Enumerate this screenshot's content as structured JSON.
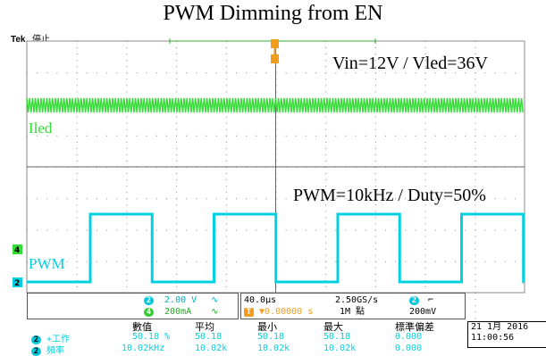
{
  "title": "PWM Dimming from EN",
  "scope": {
    "brand": "Tek",
    "state": "停止",
    "trigger_marker": "T"
  },
  "channels": {
    "ch2": {
      "id": "2",
      "color": "#00d0e0",
      "label": "PWM",
      "scale": "2.00 V",
      "annot": "PWM=10kHz / Duty=50%",
      "coupling": "∿"
    },
    "ch4": {
      "id": "4",
      "color": "#33dd33",
      "label": "Iled",
      "scale": "200mA",
      "annot": "Vin=12V / Vled=36V",
      "coupling": "∿"
    }
  },
  "timebase": {
    "time_div": "40.0µs",
    "sample_rate": "2.50GS/s",
    "record": "1M 點",
    "trigger_offset": "▼0.00000 s",
    "trigger_source": "2",
    "trigger_slope": "⌐",
    "trigger_level": "200mV"
  },
  "measurements": {
    "headers": [
      "數值",
      "平均",
      "最小",
      "最大",
      "標準偏差"
    ],
    "rows": [
      {
        "ch": "2",
        "name": "+工作",
        "values": [
          "50.18 %",
          "50.18",
          "50.18",
          "50.18",
          "0.000"
        ]
      },
      {
        "ch": "2",
        "name": "頻率",
        "values": [
          "10.02kHz",
          "10.02k",
          "10.02k",
          "10.02k",
          "0.000"
        ]
      }
    ]
  },
  "datetime": {
    "date": "21 1月  2016",
    "time": "11:00:56"
  }
}
